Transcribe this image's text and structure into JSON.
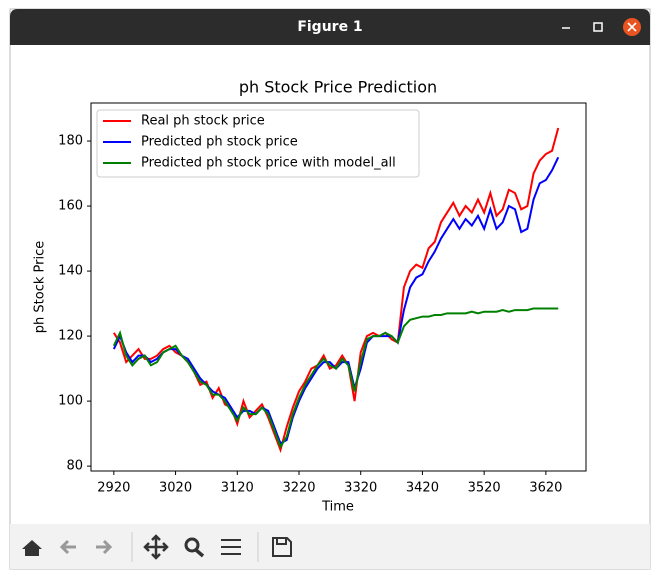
{
  "window": {
    "title": "Figure 1"
  },
  "chart_data": {
    "type": "line",
    "title": "ph Stock Price Prediction",
    "x_label": "Time",
    "y_label": "ph Stock Price",
    "x": [
      2920,
      2930,
      2940,
      2950,
      2960,
      2970,
      2980,
      2990,
      3000,
      3010,
      3020,
      3030,
      3040,
      3050,
      3060,
      3070,
      3080,
      3090,
      3100,
      3110,
      3120,
      3130,
      3140,
      3150,
      3160,
      3170,
      3180,
      3190,
      3200,
      3210,
      3220,
      3230,
      3240,
      3250,
      3260,
      3270,
      3280,
      3290,
      3300,
      3310,
      3320,
      3330,
      3340,
      3350,
      3360,
      3370,
      3380,
      3390,
      3400,
      3410,
      3420,
      3430,
      3440,
      3450,
      3460,
      3470,
      3480,
      3490,
      3500,
      3510,
      3520,
      3530,
      3540,
      3550,
      3560,
      3570,
      3580,
      3590,
      3600,
      3610,
      3620,
      3630,
      3640
    ],
    "series": [
      {
        "name": "Real ph stock price",
        "color": "#ff0000",
        "values": [
          121,
          118,
          112,
          114,
          116,
          113,
          113,
          114,
          116,
          117,
          115,
          114,
          112,
          109,
          105,
          106,
          101,
          104,
          99,
          98,
          93,
          100,
          95,
          97,
          99,
          95,
          90,
          85,
          92,
          98,
          103,
          106,
          110,
          111,
          114,
          110,
          111,
          114,
          111,
          100,
          115,
          120,
          121,
          120,
          121,
          119,
          118,
          135,
          140,
          142,
          141,
          147,
          149,
          155,
          158,
          161,
          157,
          160,
          158,
          162,
          158,
          164,
          157,
          159,
          165,
          164,
          159,
          160,
          170,
          174,
          176,
          177,
          184
        ]
      },
      {
        "name": "Predicted ph stock price",
        "color": "#0000ff",
        "values": [
          116,
          120,
          115,
          112,
          114,
          114,
          112,
          113,
          115,
          116,
          116,
          114,
          113,
          110,
          107,
          105,
          103,
          102,
          101,
          98,
          95,
          97,
          97,
          96,
          98,
          97,
          92,
          87,
          88,
          95,
          100,
          104,
          107,
          110,
          112,
          112,
          110,
          112,
          112,
          104,
          110,
          118,
          120,
          120,
          120,
          120,
          118,
          128,
          135,
          138,
          139,
          143,
          146,
          150,
          153,
          156,
          153,
          156,
          154,
          157,
          153,
          159,
          153,
          155,
          160,
          159,
          152,
          153,
          162,
          167,
          168,
          171,
          175
        ]
      },
      {
        "name": "Predicted ph stock price with model_all",
        "color": "#008000",
        "values": [
          117,
          121,
          114,
          111,
          113,
          114,
          111,
          112,
          115,
          116,
          117,
          114,
          112,
          109,
          106,
          105,
          102,
          102,
          100,
          97,
          94,
          98,
          96,
          96,
          98,
          96,
          91,
          86,
          89,
          96,
          101,
          105,
          108,
          111,
          113,
          111,
          110,
          113,
          111,
          103,
          112,
          119,
          120,
          120,
          121,
          120,
          118,
          123,
          125,
          125.5,
          126,
          126,
          126.5,
          126.5,
          127,
          127,
          127,
          127,
          127.5,
          127,
          127.5,
          127.5,
          127.5,
          128,
          127.5,
          128,
          128,
          128,
          128.5,
          128.5,
          128.5,
          128.5,
          128.5
        ]
      }
    ],
    "xlim": [
      2883,
      3685
    ],
    "ylim": [
      78.5,
      191.7
    ],
    "xticks": [
      2920,
      3020,
      3120,
      3220,
      3320,
      3420,
      3520,
      3620
    ],
    "yticks": [
      80,
      100,
      120,
      140,
      160,
      180
    ],
    "legend": "upper left"
  }
}
